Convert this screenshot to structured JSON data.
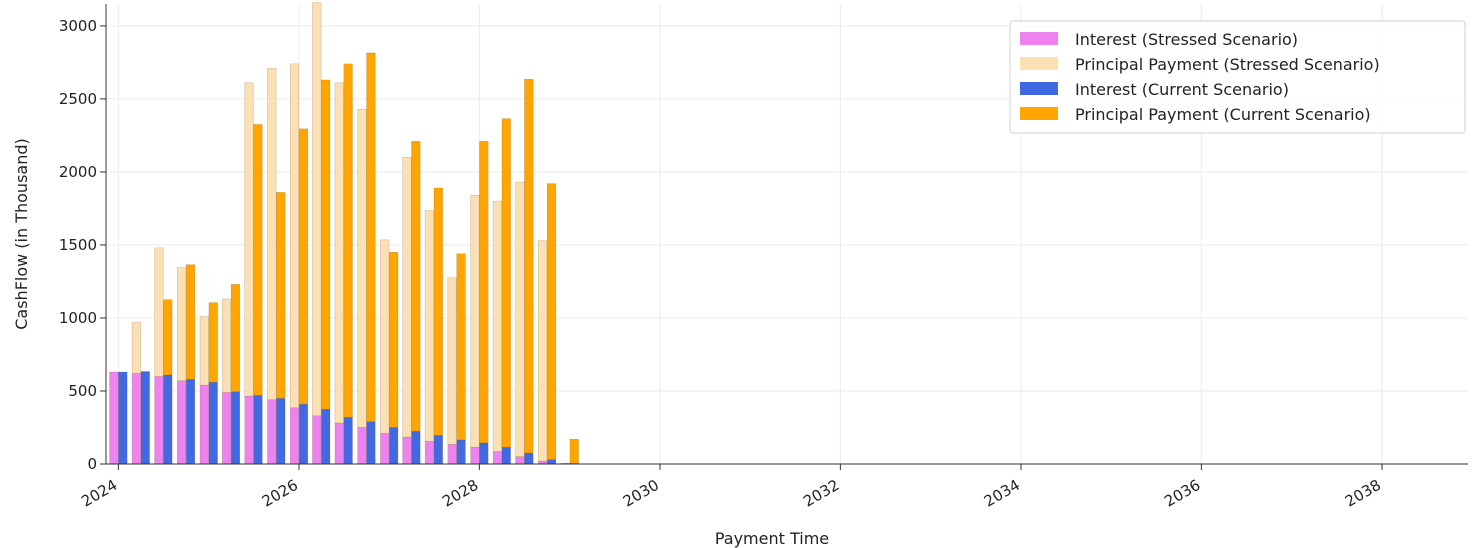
{
  "chart_data": {
    "type": "bar",
    "title": "",
    "xlabel": "Payment Time",
    "ylabel": "CashFlow (in Thousand)",
    "xlim": [
      "2023-11-12",
      "2038-12-15"
    ],
    "ylim": [
      0,
      3150
    ],
    "x_ticks": [
      "2024",
      "2026",
      "2028",
      "2030",
      "2032",
      "2034",
      "2036",
      "2038"
    ],
    "y_ticks": [
      "0",
      "500",
      "1000",
      "1500",
      "2000",
      "2500",
      "3000"
    ],
    "grid": true,
    "legend_position": "top-right",
    "dates": [
      "2024-01",
      "2024-04",
      "2024-07",
      "2024-10",
      "2025-01",
      "2025-04",
      "2025-07",
      "2025-10",
      "2026-01",
      "2026-04",
      "2026-07",
      "2026-10",
      "2027-01",
      "2027-04",
      "2027-07",
      "2027-10",
      "2028-01",
      "2028-04",
      "2028-07",
      "2028-10",
      "2029-01"
    ],
    "series": [
      {
        "name": "Interest (Stressed Scenario)",
        "color": "#ee82ee",
        "group": "stressed",
        "values": [
          630,
          620,
          600,
          570,
          540,
          490,
          465,
          440,
          385,
          330,
          280,
          250,
          210,
          185,
          155,
          135,
          115,
          85,
          50,
          20,
          5
        ]
      },
      {
        "name": "Principal Payment (Stressed Scenario)",
        "color": "#fbe0b4",
        "group": "stressed",
        "values": [
          0,
          350,
          880,
          775,
          470,
          640,
          2145,
          2270,
          2355,
          2830,
          2330,
          2180,
          1325,
          1915,
          1580,
          1140,
          1725,
          1715,
          1880,
          1510,
          0
        ]
      },
      {
        "name": "Interest (Current Scenario)",
        "color": "#4169e1",
        "group": "current",
        "values": [
          630,
          630,
          610,
          580,
          560,
          495,
          470,
          450,
          410,
          375,
          320,
          290,
          250,
          225,
          195,
          165,
          145,
          115,
          75,
          30,
          5
        ]
      },
      {
        "name": "Principal Payment (Current Scenario)",
        "color": "#ffa500",
        "group": "current",
        "values": [
          0,
          5,
          515,
          785,
          545,
          735,
          1855,
          1410,
          1885,
          2255,
          2420,
          2525,
          1200,
          1985,
          1695,
          1275,
          2065,
          2250,
          2560,
          1890,
          165
        ]
      }
    ]
  }
}
